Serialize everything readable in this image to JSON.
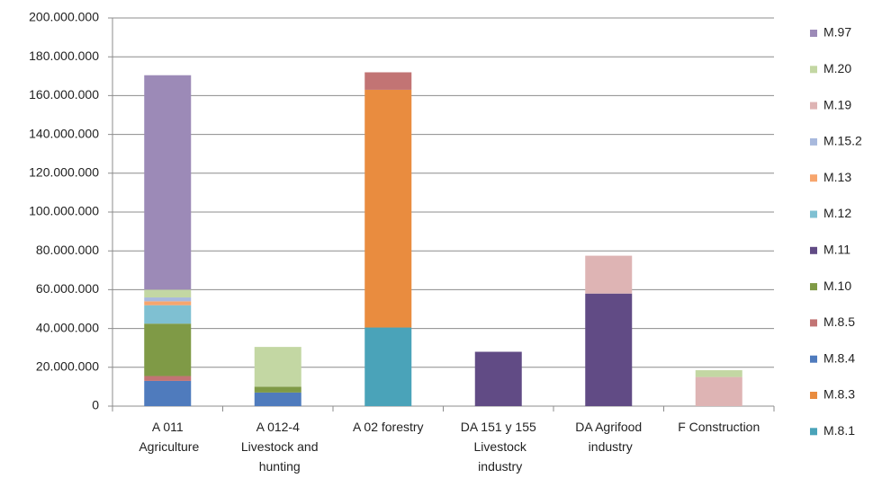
{
  "chart_data": {
    "type": "stacked_bar",
    "categories": [
      "A 011 Agriculture",
      "A 012-4 Livestock and hunting",
      "A 02 forestry",
      "DA 151 y 155 Livestock industry",
      "DA Agrifood industry",
      "F Construction"
    ],
    "series": [
      {
        "name": "M.8.1",
        "color": "#4aa3b9",
        "values": [
          0,
          0,
          40500000,
          0,
          0,
          0
        ]
      },
      {
        "name": "M.8.3",
        "color": "#e98c3f",
        "values": [
          0,
          0,
          122500000,
          0,
          0,
          0
        ]
      },
      {
        "name": "M.8.4",
        "color": "#4f7bbd",
        "values": [
          13000000,
          7000000,
          0,
          0,
          0,
          0
        ]
      },
      {
        "name": "M.8.5",
        "color": "#c27474",
        "values": [
          2500000,
          0,
          9000000,
          0,
          0,
          0
        ]
      },
      {
        "name": "M.10",
        "color": "#7f9a46",
        "values": [
          27000000,
          3000000,
          0,
          0,
          0,
          0
        ]
      },
      {
        "name": "M.11",
        "color": "#614b85",
        "values": [
          0,
          0,
          0,
          28000000,
          58000000,
          0
        ]
      },
      {
        "name": "M.12",
        "color": "#7fc0d2",
        "values": [
          9500000,
          0,
          0,
          0,
          0,
          0
        ]
      },
      {
        "name": "M.13",
        "color": "#f7a56d",
        "values": [
          2000000,
          0,
          0,
          0,
          0,
          0
        ]
      },
      {
        "name": "M.15.2",
        "color": "#a8b9dd",
        "values": [
          2000000,
          0,
          0,
          0,
          0,
          0
        ]
      },
      {
        "name": "M.19",
        "color": "#deb4b4",
        "values": [
          0,
          0,
          0,
          0,
          19500000,
          15000000
        ]
      },
      {
        "name": "M.20",
        "color": "#c3d7a3",
        "values": [
          4000000,
          20500000,
          0,
          0,
          0,
          3500000
        ]
      },
      {
        "name": "M.97",
        "color": "#9c8ab7",
        "values": [
          110500000,
          0,
          0,
          0,
          0,
          0
        ]
      }
    ],
    "ylim": [
      0,
      200000000
    ],
    "yticks": [
      0,
      {
        "value": 20000000,
        "label": "20.000.000"
      },
      {
        "value": 40000000,
        "label": "40.000.000"
      },
      {
        "value": 60000000,
        "label": "60.000.000"
      },
      {
        "value": 80000000,
        "label": "80.000.000"
      },
      {
        "value": 100000000,
        "label": "100.000.000"
      },
      {
        "value": 120000000,
        "label": "120.000.000"
      },
      {
        "value": 140000000,
        "label": "140.000.000"
      },
      {
        "value": 160000000,
        "label": "160.000.000"
      },
      {
        "value": 180000000,
        "label": "180.000.000"
      },
      {
        "value": 200000000,
        "label": "200.000.000"
      }
    ],
    "grid": true,
    "legend": "right"
  }
}
